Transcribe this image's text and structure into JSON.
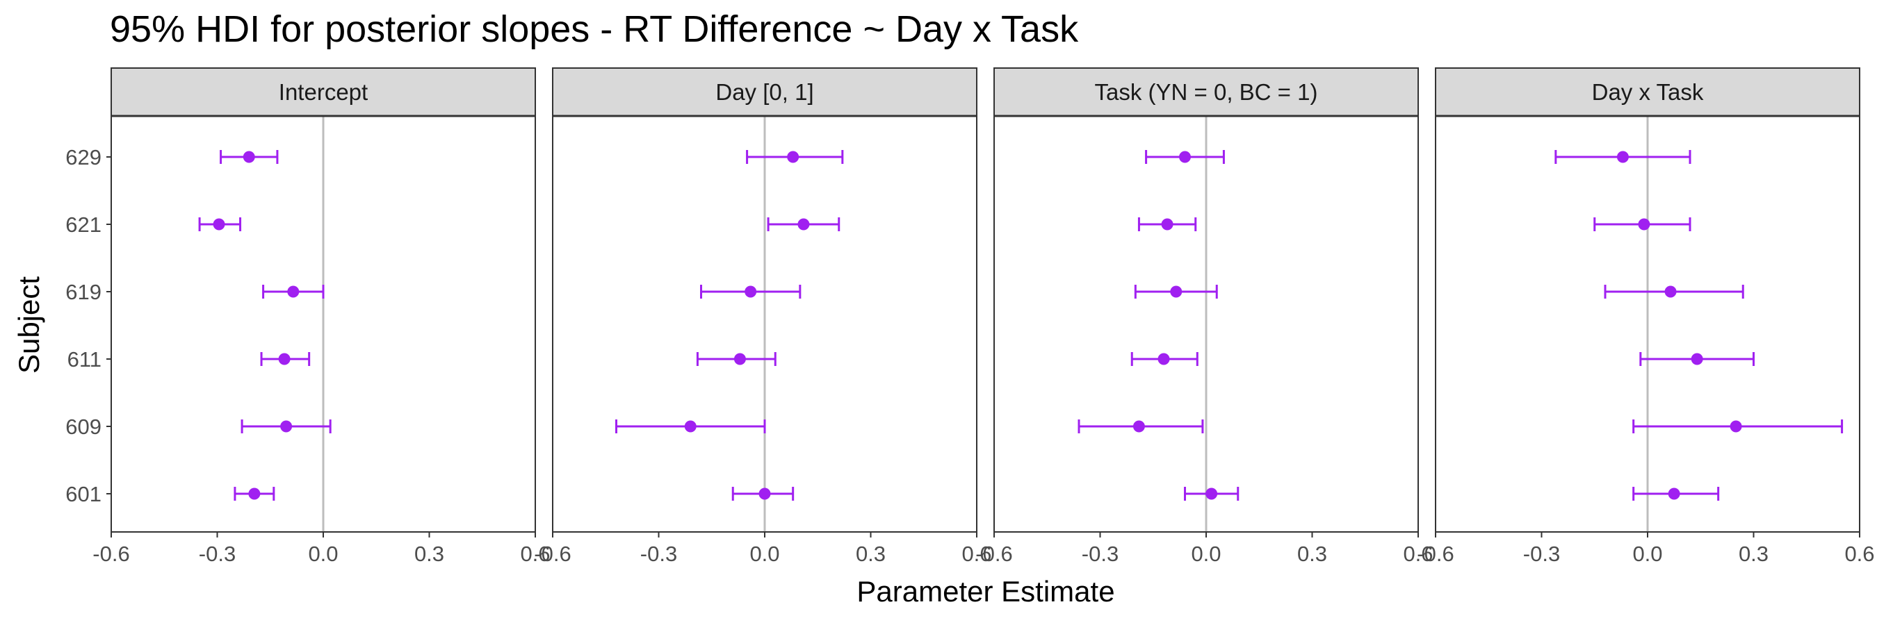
{
  "chart_data": {
    "type": "forest",
    "title": "95% HDI for posterior slopes - RT Difference ~ Day x Task",
    "xlabel": "Parameter Estimate",
    "ylabel": "Subject",
    "xlim": [
      -0.6,
      0.6
    ],
    "xticks": [
      -0.6,
      -0.3,
      0.0,
      0.3,
      0.6
    ],
    "xtick_labels": [
      "-0.6",
      "-0.3",
      "0.0",
      "0.3",
      "0.6"
    ],
    "subjects": [
      "629",
      "621",
      "619",
      "611",
      "609",
      "601"
    ],
    "reference_line": 0,
    "grid": false,
    "point_color": "#A020F0",
    "panels": [
      {
        "name": "Intercept",
        "estimates": [
          {
            "subject": "629",
            "mean": -0.21,
            "lower": -0.29,
            "upper": -0.13
          },
          {
            "subject": "621",
            "mean": -0.295,
            "lower": -0.35,
            "upper": -0.235
          },
          {
            "subject": "619",
            "mean": -0.085,
            "lower": -0.17,
            "upper": 0.0
          },
          {
            "subject": "611",
            "mean": -0.11,
            "lower": -0.175,
            "upper": -0.04
          },
          {
            "subject": "609",
            "mean": -0.105,
            "lower": -0.23,
            "upper": 0.02
          },
          {
            "subject": "601",
            "mean": -0.195,
            "lower": -0.25,
            "upper": -0.14
          }
        ]
      },
      {
        "name": "Day [0, 1]",
        "estimates": [
          {
            "subject": "629",
            "mean": 0.08,
            "lower": -0.05,
            "upper": 0.22
          },
          {
            "subject": "621",
            "mean": 0.11,
            "lower": 0.01,
            "upper": 0.21
          },
          {
            "subject": "619",
            "mean": -0.04,
            "lower": -0.18,
            "upper": 0.1
          },
          {
            "subject": "611",
            "mean": -0.07,
            "lower": -0.19,
            "upper": 0.03
          },
          {
            "subject": "609",
            "mean": -0.21,
            "lower": -0.42,
            "upper": 0.0
          },
          {
            "subject": "601",
            "mean": 0.0,
            "lower": -0.09,
            "upper": 0.08
          }
        ]
      },
      {
        "name": "Task (YN = 0, BC = 1)",
        "estimates": [
          {
            "subject": "629",
            "mean": -0.06,
            "lower": -0.17,
            "upper": 0.05
          },
          {
            "subject": "621",
            "mean": -0.11,
            "lower": -0.19,
            "upper": -0.03
          },
          {
            "subject": "619",
            "mean": -0.085,
            "lower": -0.2,
            "upper": 0.03
          },
          {
            "subject": "611",
            "mean": -0.12,
            "lower": -0.21,
            "upper": -0.025
          },
          {
            "subject": "609",
            "mean": -0.19,
            "lower": -0.36,
            "upper": -0.01
          },
          {
            "subject": "601",
            "mean": 0.015,
            "lower": -0.06,
            "upper": 0.09
          }
        ]
      },
      {
        "name": "Day x Task",
        "estimates": [
          {
            "subject": "629",
            "mean": -0.07,
            "lower": -0.26,
            "upper": 0.12
          },
          {
            "subject": "621",
            "mean": -0.01,
            "lower": -0.15,
            "upper": 0.12
          },
          {
            "subject": "619",
            "mean": 0.065,
            "lower": -0.12,
            "upper": 0.27
          },
          {
            "subject": "611",
            "mean": 0.14,
            "lower": -0.02,
            "upper": 0.3
          },
          {
            "subject": "609",
            "mean": 0.25,
            "lower": -0.04,
            "upper": 0.55
          },
          {
            "subject": "601",
            "mean": 0.075,
            "lower": -0.04,
            "upper": 0.2
          }
        ]
      }
    ]
  }
}
